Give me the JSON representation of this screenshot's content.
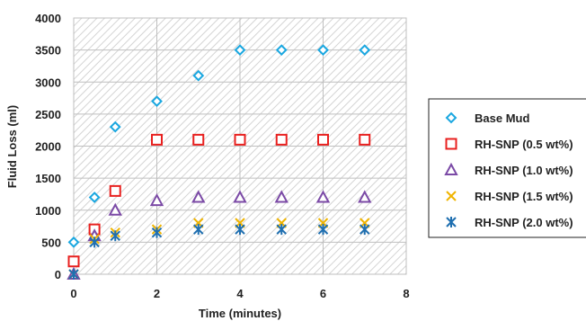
{
  "chart_data": {
    "type": "scatter",
    "xlabel": "Time (minutes)",
    "ylabel": "Fluid Loss (ml)",
    "xlim": [
      0,
      8
    ],
    "ylim": [
      0,
      4000
    ],
    "x_ticks": [
      "0",
      "2",
      "4",
      "6",
      "8"
    ],
    "y_ticks": [
      "0",
      "500",
      "1000",
      "1500",
      "2000",
      "2500",
      "3000",
      "3500",
      "4000"
    ],
    "grid": true,
    "legend_position": "right",
    "series": [
      {
        "name": "Base Mud",
        "marker": "diamond",
        "color": "#1aa7e0",
        "points": [
          [
            0,
            500
          ],
          [
            0.5,
            1200
          ],
          [
            1,
            2300
          ],
          [
            2,
            2700
          ],
          [
            3,
            3100
          ],
          [
            4,
            3500
          ],
          [
            5,
            3500
          ],
          [
            6,
            3500
          ],
          [
            7,
            3500
          ]
        ]
      },
      {
        "name": "RH-SNP (0.5 wt%)",
        "marker": "square",
        "color": "#e8201f",
        "points": [
          [
            0,
            200
          ],
          [
            0.5,
            700
          ],
          [
            1,
            1300
          ],
          [
            2,
            2100
          ],
          [
            3,
            2100
          ],
          [
            4,
            2100
          ],
          [
            5,
            2100
          ],
          [
            6,
            2100
          ],
          [
            7,
            2100
          ]
        ]
      },
      {
        "name": "RH-SNP (1.0 wt%)",
        "marker": "triangle",
        "color": "#7b4aa6",
        "points": [
          [
            0,
            0
          ],
          [
            0.5,
            600
          ],
          [
            1,
            1000
          ],
          [
            2,
            1150
          ],
          [
            3,
            1200
          ],
          [
            4,
            1200
          ],
          [
            5,
            1200
          ],
          [
            6,
            1200
          ],
          [
            7,
            1200
          ]
        ]
      },
      {
        "name": "RH-SNP (1.5 wt%)",
        "marker": "x",
        "color": "#f0b400",
        "points": [
          [
            0,
            0
          ],
          [
            0.5,
            550
          ],
          [
            1,
            650
          ],
          [
            2,
            700
          ],
          [
            3,
            800
          ],
          [
            4,
            800
          ],
          [
            5,
            800
          ],
          [
            6,
            800
          ],
          [
            7,
            800
          ]
        ]
      },
      {
        "name": "RH-SNP (2.0 wt%)",
        "marker": "asterisk",
        "color": "#1f6fb0",
        "points": [
          [
            0,
            0
          ],
          [
            0.5,
            500
          ],
          [
            1,
            600
          ],
          [
            2,
            650
          ],
          [
            3,
            700
          ],
          [
            4,
            700
          ],
          [
            5,
            700
          ],
          [
            6,
            700
          ],
          [
            7,
            700
          ]
        ]
      }
    ]
  }
}
